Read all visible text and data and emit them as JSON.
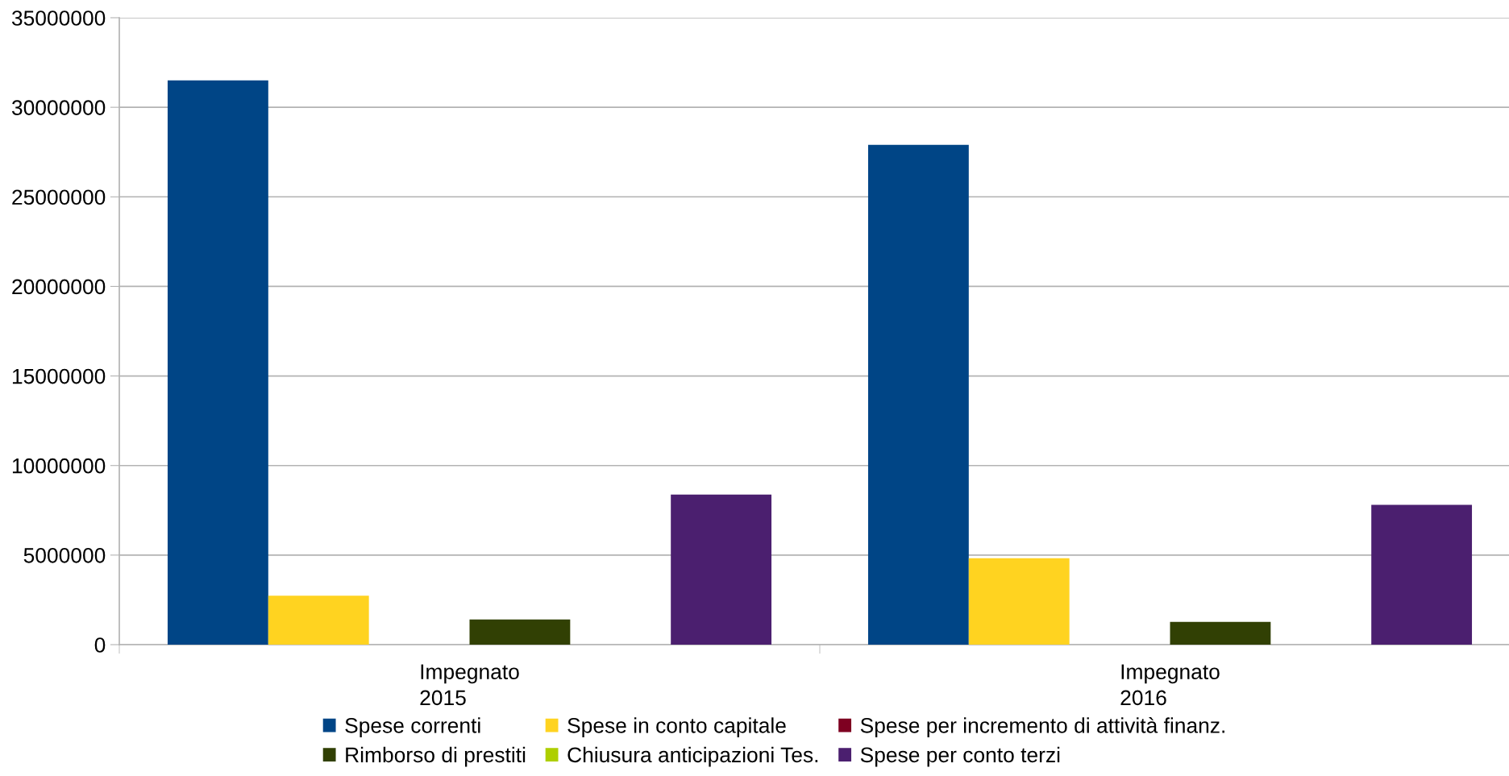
{
  "chart_data": {
    "type": "bar",
    "categories": [
      "Impegnato\n2015",
      "Impegnato\n2016"
    ],
    "series": [
      {
        "name": "Spese correnti",
        "color": "#004586",
        "values": [
          31500000,
          27900000
        ]
      },
      {
        "name": "Spese in conto capitale",
        "color": "#ffd320",
        "values": [
          2730000,
          4820000
        ]
      },
      {
        "name": "Spese per incremento di attività finanz.",
        "color": "#7e0021",
        "values": [
          null,
          null
        ]
      },
      {
        "name": "Rimborso di prestiti",
        "color": "#314004",
        "values": [
          1410000,
          1270000
        ]
      },
      {
        "name": "Chiusura anticipazioni Tes.",
        "color": "#aecf00",
        "values": [
          null,
          null
        ]
      },
      {
        "name": "Spese per conto terzi",
        "color": "#4b1f6f",
        "values": [
          8380000,
          7800000
        ]
      }
    ],
    "ylim": [
      0,
      35000000
    ],
    "yticks": [
      0,
      5000000,
      10000000,
      15000000,
      20000000,
      25000000,
      30000000,
      35000000
    ],
    "grid": "y",
    "legend": "bottom"
  }
}
